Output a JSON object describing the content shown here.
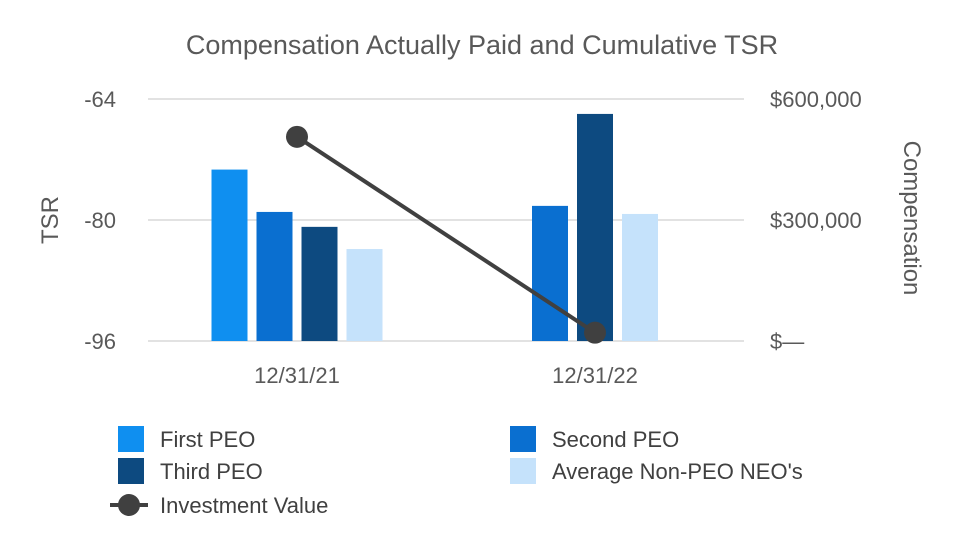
{
  "chart_data": {
    "type": "bar",
    "title": "Compensation Actually Paid and Cumulative TSR",
    "categories": [
      "12/31/21",
      "12/31/22"
    ],
    "left_axis": {
      "label": "TSR",
      "ticks": [
        {
          "value": -64,
          "label": "-64"
        },
        {
          "value": -80,
          "label": "-80"
        },
        {
          "value": -96,
          "label": "-96"
        }
      ],
      "range": [
        -96,
        -64
      ]
    },
    "right_axis": {
      "label": "Compensation",
      "ticks": [
        {
          "value": 600000,
          "label": "$600,000"
        },
        {
          "value": 300000,
          "label": "$300,000"
        },
        {
          "value": 0,
          "label": "$—"
        }
      ],
      "range": [
        0,
        600000
      ]
    },
    "series": [
      {
        "name": "First PEO",
        "color": "#0f8ff0",
        "values": [
          425000,
          null
        ]
      },
      {
        "name": "Second PEO",
        "color": "#0a6fd0",
        "values": [
          320000,
          335000
        ]
      },
      {
        "name": "Third PEO",
        "color": "#0d4a80",
        "values": [
          283000,
          563000
        ]
      },
      {
        "name": "Average Non-PEO NEO's",
        "color": "#c5e2fb",
        "values": [
          228000,
          315000
        ]
      }
    ],
    "line_series": {
      "name": "Investment Value",
      "color": "#404040",
      "axis": "left",
      "values": [
        -69,
        -94.9
      ]
    },
    "grid": true,
    "legend_position": "bottom"
  }
}
